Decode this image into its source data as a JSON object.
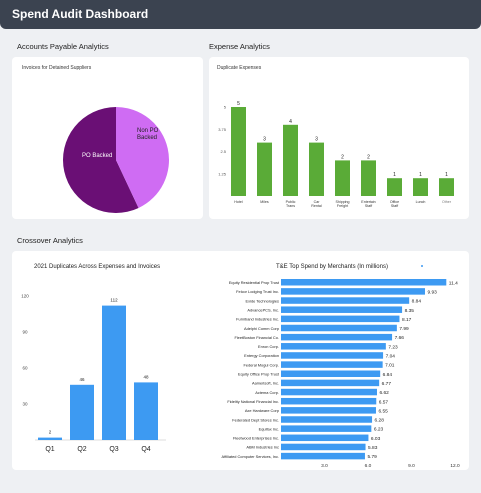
{
  "header": {
    "title": "Spend Audit Dashboard"
  },
  "sections": {
    "accounts_payable": "Accounts Payable Analytics",
    "expense": "Expense Analytics",
    "crossover": "Crossover Analytics"
  },
  "cards": {
    "pie_title": "Invoices for Detained Suppliers",
    "duplicates_title": "Duplicate Expenses",
    "quarter_title": "2021 Duplicates Across Expenses and Invoices",
    "merchants_title": "T&E Top Spend by Merchants (In millions)"
  },
  "chart_data": [
    {
      "type": "pie",
      "title": "Invoices for Detained Suppliers",
      "slices": [
        {
          "label": "PO Backed",
          "value": 57,
          "color": "#6a0f75"
        },
        {
          "label": "Non PO\nBacked",
          "value": 43,
          "color": "#cf6cf3"
        }
      ]
    },
    {
      "type": "bar",
      "title": "Duplicate Expenses",
      "categories": [
        "Hotel",
        "Miles",
        "Public\nTrans",
        "Car\nRental",
        "Shipping\nFreight",
        "Entertain\nStaff",
        "Office\nStaff",
        "Lunch",
        "Other"
      ],
      "values": [
        5,
        3,
        4,
        3,
        2,
        2,
        1,
        1,
        1
      ],
      "yticks": [
        "1.25",
        "2.5",
        "3.75",
        "5"
      ],
      "ylim": [
        0,
        5.5
      ],
      "color": "#5aab37"
    },
    {
      "type": "bar",
      "title": "2021 Duplicates Across Expenses and Invoices",
      "categories": [
        "Q1",
        "Q2",
        "Q3",
        "Q4"
      ],
      "values": [
        2,
        46,
        112,
        48
      ],
      "yticks": [
        "30",
        "60",
        "90",
        "120"
      ],
      "ylim": [
        0,
        120
      ],
      "color": "#3d9af2"
    },
    {
      "type": "bar",
      "orientation": "horizontal",
      "title": "T&E Top Spend by Merchants (In millions)",
      "categories": [
        "Equity Residential Prop Trust",
        "Felcor Lodging Trust Inc.",
        "Exide Technologies",
        "AdvancePCS, Inc.",
        "Furniband Industries Inc.",
        "Adelphi Comm Corp",
        "FleetBoston Financial Co.",
        "Enron Corp.",
        "Entergy Corporation",
        "Federal Mogul Corp.",
        "Equity Office Prop Trust",
        "Aamerisoft, Inc.",
        "Actema Corp.",
        "Fidelity National Financial Inc.",
        "Axe Hardware Corp",
        "Federated Dept Stores Inc.",
        "Equifax Inc.",
        "Fleetwood Enterprises Inc.",
        "ABM Industries Inc",
        "Affiliated Computer Services, Inc."
      ],
      "values": [
        11.4,
        9.93,
        8.84,
        8.35,
        8.17,
        7.99,
        7.66,
        7.23,
        7.04,
        7.01,
        6.84,
        6.77,
        6.62,
        6.57,
        6.55,
        6.28,
        6.23,
        6.03,
        5.83,
        5.79
      ],
      "xticks": [
        "3.0",
        "6.0",
        "9.0",
        "12.0"
      ],
      "xlim": [
        0,
        12
      ],
      "color": "#3d9af2"
    }
  ]
}
